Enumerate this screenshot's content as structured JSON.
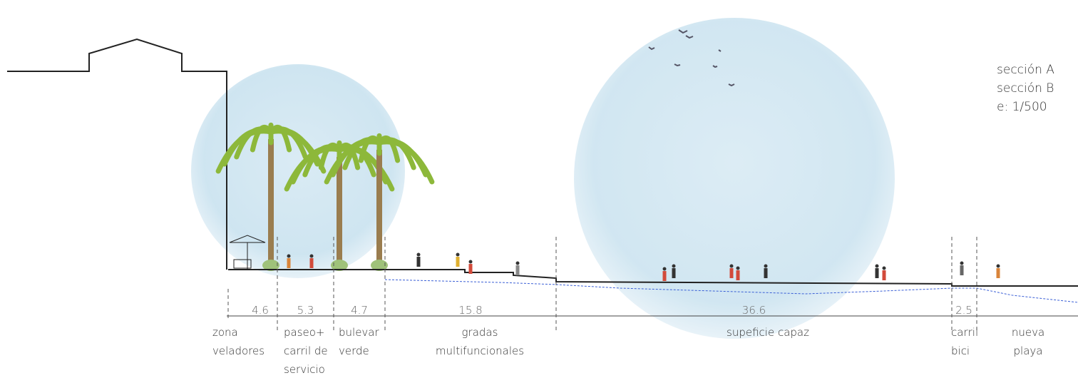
{
  "legend": [
    "sección A",
    "sección B",
    "e: 1/500"
  ],
  "zones": [
    {
      "width": 4.6,
      "label": [
        "zona",
        "veladores"
      ]
    },
    {
      "width": 5.3,
      "label": [
        "paseo+",
        "carril de",
        "servicio"
      ]
    },
    {
      "width": 4.7,
      "label": [
        "bulevar",
        "verde"
      ]
    },
    {
      "width": 15.8,
      "label": [
        "gradas",
        "multifuncionales"
      ]
    },
    {
      "width": 36.6,
      "label": [
        "supeficie capaz"
      ]
    },
    {
      "width": 2.5,
      "label": [
        "carril",
        "bici"
      ]
    },
    {
      "label": [
        "nueva",
        "playa"
      ]
    }
  ]
}
